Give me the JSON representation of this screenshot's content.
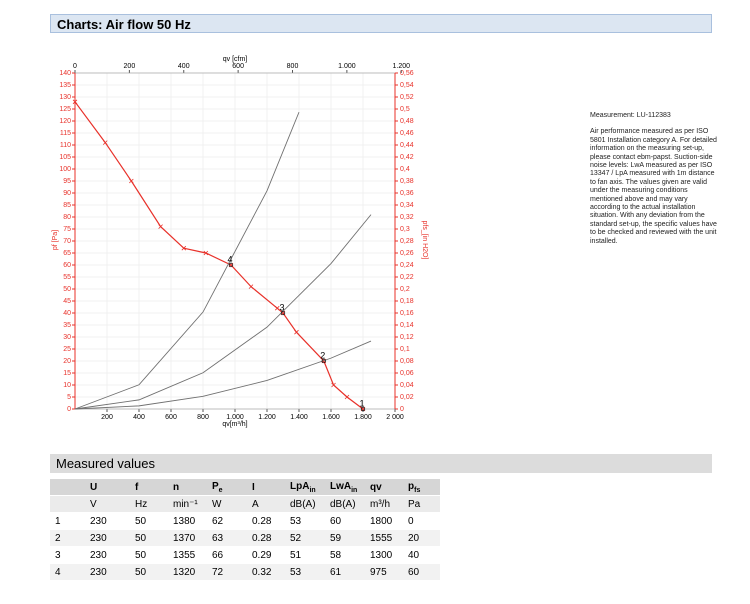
{
  "header": {
    "title": "Charts: Air flow 50 Hz"
  },
  "chart_data": {
    "type": "line",
    "xlabel": "qv[m³/h]",
    "x2label": "qv [cfm]",
    "ylabel": "pf [Pa]",
    "y2label": "pfs_[in H2O]",
    "xlim": [
      0,
      2000
    ],
    "xticks": [
      200,
      400,
      600,
      800,
      {
        "value": 1000,
        "label": "1.000"
      },
      {
        "value": 1200,
        "label": "1.200"
      },
      {
        "value": 1400,
        "label": "1.400"
      },
      {
        "value": 1600,
        "label": "1.600"
      },
      {
        "value": 1800,
        "label": "1.800"
      },
      {
        "value": 2000,
        "label": "2 000"
      }
    ],
    "x2lim": [
      0,
      1177
    ],
    "x2ticks": [
      0,
      200,
      400,
      600,
      800,
      {
        "value": 1000,
        "label": "1.000"
      },
      {
        "value": 1200,
        "label": "1.200"
      }
    ],
    "ylim": [
      0,
      140
    ],
    "yticks": [
      0,
      5,
      10,
      15,
      20,
      25,
      30,
      35,
      40,
      45,
      50,
      55,
      60,
      65,
      70,
      75,
      80,
      85,
      90,
      95,
      100,
      105,
      110,
      115,
      120,
      125,
      130,
      135,
      140
    ],
    "y2lim": [
      0,
      0.56
    ],
    "y2ticks": [
      0,
      {
        "value": 0.02,
        "label": "0,02"
      },
      {
        "value": 0.04,
        "label": "0,04"
      },
      {
        "value": 0.06,
        "label": "0,06"
      },
      {
        "value": 0.08,
        "label": "0,08"
      },
      {
        "value": 0.1,
        "label": "0,1"
      },
      {
        "value": 0.12,
        "label": "0,12"
      },
      {
        "value": 0.14,
        "label": "0,14"
      },
      {
        "value": 0.16,
        "label": "0,16"
      },
      {
        "value": 0.18,
        "label": "0,18"
      },
      {
        "value": 0.2,
        "label": "0,2"
      },
      {
        "value": 0.22,
        "label": "0,22"
      },
      {
        "value": 0.24,
        "label": "0,24"
      },
      {
        "value": 0.26,
        "label": "0,26"
      },
      {
        "value": 0.28,
        "label": "0,28"
      },
      {
        "value": 0.3,
        "label": "0,3"
      },
      {
        "value": 0.32,
        "label": "0,32"
      },
      {
        "value": 0.34,
        "label": "0,34"
      },
      {
        "value": 0.36,
        "label": "0,36"
      },
      {
        "value": 0.38,
        "label": "0,38"
      },
      {
        "value": 0.4,
        "label": "0,4"
      },
      {
        "value": 0.42,
        "label": "0,42"
      },
      {
        "value": 0.44,
        "label": "0,44"
      },
      {
        "value": 0.46,
        "label": "0,46"
      },
      {
        "value": 0.48,
        "label": "0,48"
      },
      {
        "value": 0.5,
        "label": "0,5"
      },
      {
        "value": 0.52,
        "label": "0,52"
      },
      {
        "value": 0.54,
        "label": "0,54"
      },
      {
        "value": 0.56,
        "label": "0,56"
      }
    ],
    "grid": true,
    "series": [
      {
        "color": "#e8312a",
        "markers": true,
        "x": [
          0,
          189,
          352,
          535,
          680,
          818,
          975,
          1100,
          1264,
          1300,
          1384,
          1555,
          1616,
          1700,
          1800
        ],
        "values": [
          128,
          111,
          95,
          76,
          67,
          65,
          60,
          51,
          42,
          40,
          32,
          20,
          10,
          5,
          0
        ]
      },
      {
        "color": "#707070",
        "x": [
          0,
          400,
          800,
          1200,
          1400
        ],
        "values": [
          0,
          10.1,
          40.4,
          90.9,
          123.7
        ]
      },
      {
        "color": "#707070",
        "x": [
          0,
          400,
          800,
          1200,
          1600,
          1850
        ],
        "values": [
          0,
          3.8,
          15.1,
          34.1,
          60.6,
          81
        ]
      },
      {
        "color": "#707070",
        "x": [
          0,
          400,
          800,
          1200,
          1600,
          1850
        ],
        "values": [
          0,
          1.3,
          5.3,
          11.9,
          21.2,
          28.3
        ]
      }
    ],
    "points": [
      {
        "label": "1",
        "x": 1800,
        "y": 0
      },
      {
        "label": "2",
        "x": 1555,
        "y": 20
      },
      {
        "label": "3",
        "x": 1300,
        "y": 40
      },
      {
        "label": "4",
        "x": 975,
        "y": 60
      }
    ]
  },
  "notes": {
    "measurement": "Measurement: LU-112383",
    "text": "Air performance measured as per ISO 5801 Installation category A. For detailed information on the measuring set-up, please contact ebm-papst. Suction-side noise levels: LwA measured as per ISO 13347 / LpA measured with 1m distance to fan axis. The values given are valid under the measuring conditions mentioned above and may vary according to the actual installation situation. With any deviation from the standard set-up, the specific values have to be checked and reviewed with the unit installed."
  },
  "table": {
    "title": "Measured values",
    "header": [
      "U",
      "f",
      "n",
      {
        "text": "P",
        "sub": "e"
      },
      "I",
      {
        "text": "LpA",
        "sub": "in"
      },
      {
        "text": "LwA",
        "sub": "in"
      },
      "qv",
      {
        "text": "p",
        "sub": "fs"
      }
    ],
    "units": [
      "V",
      "Hz",
      "min⁻¹",
      "W",
      "A",
      "dB(A)",
      "dB(A)",
      "m³/h",
      "Pa"
    ],
    "rows": [
      [
        1,
        230,
        50,
        1380,
        62,
        0.28,
        53,
        60,
        1800,
        0
      ],
      [
        2,
        230,
        50,
        1370,
        63,
        0.28,
        52,
        59,
        1555,
        20
      ],
      [
        3,
        230,
        50,
        1355,
        66,
        0.29,
        51,
        58,
        1300,
        40
      ],
      [
        4,
        230,
        50,
        1320,
        72,
        0.32,
        53,
        61,
        975,
        60
      ]
    ]
  }
}
